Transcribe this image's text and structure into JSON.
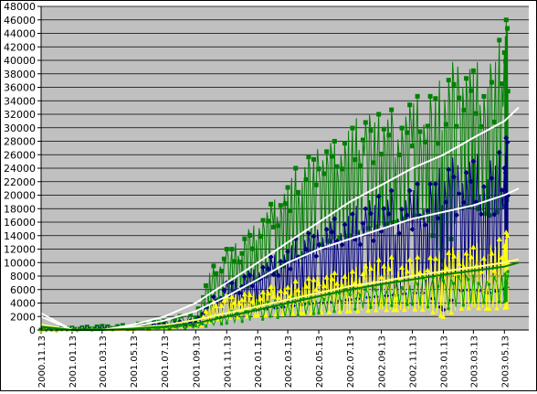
{
  "chart_data": {
    "type": "line",
    "title": "",
    "xlabel": "",
    "ylabel": "",
    "ylim": [
      0,
      48000
    ],
    "y_ticks": [
      0,
      2000,
      4000,
      6000,
      8000,
      10000,
      12000,
      14000,
      16000,
      18000,
      20000,
      22000,
      24000,
      26000,
      28000,
      30000,
      32000,
      34000,
      36000,
      38000,
      40000,
      42000,
      44000,
      46000,
      48000
    ],
    "x_tick_labels": [
      "2000.11.13",
      "2001.01.13",
      "2001.03.13",
      "2001.05.13",
      "2001.07.13",
      "2001.09.13",
      "2001.11.13",
      "2002.01.13",
      "2002.03.13",
      "2002.05.13",
      "2002.07.13",
      "2002.09.13",
      "2002.11.13",
      "2003.01.13",
      "2003.03.13",
      "2003.05.13"
    ],
    "grid": true,
    "legend": "none",
    "plot_background": "#c0c0c0",
    "series": [
      {
        "color": "#008000",
        "marker": "square",
        "x": [
          "2000.11.13",
          "2001.01.13",
          "2001.03.13",
          "2001.05.13",
          "2001.07.13",
          "2001.09.13",
          "2001.10.13",
          "2001.11.13",
          "2001.12.13",
          "2002.01.13",
          "2002.02.13",
          "2002.03.13",
          "2002.04.13",
          "2002.05.13",
          "2002.06.13",
          "2002.07.13",
          "2002.08.13",
          "2002.09.13",
          "2002.10.13",
          "2002.11.13",
          "2002.12.13",
          "2003.01.13",
          "2003.02.13",
          "2003.03.13",
          "2003.04.13",
          "2003.05.13",
          "2003.05.20"
        ],
        "peak": [
          200,
          400,
          600,
          900,
          1500,
          2600,
          9000,
          12000,
          13500,
          17000,
          19000,
          23000,
          25000,
          27000,
          28000,
          31000,
          32000,
          32000,
          33000,
          35000,
          34000,
          38000,
          41000,
          40000,
          39000,
          45000,
          47000
        ],
        "low": [
          0,
          100,
          200,
          300,
          500,
          800,
          4000,
          5000,
          6000,
          7500,
          8500,
          10000,
          11000,
          12500,
          13500,
          14000,
          15000,
          15500,
          16000,
          17000,
          16500,
          9000,
          18000,
          18500,
          17000,
          18000,
          20000
        ]
      },
      {
        "color": "#000080",
        "marker": "diamond",
        "x": [
          "2000.11.13",
          "2001.01.13",
          "2001.03.13",
          "2001.05.13",
          "2001.07.13",
          "2001.09.13",
          "2001.10.13",
          "2001.11.13",
          "2001.12.13",
          "2002.01.13",
          "2002.02.13",
          "2002.03.13",
          "2002.04.13",
          "2002.05.13",
          "2002.06.13",
          "2002.07.13",
          "2002.08.13",
          "2002.09.13",
          "2002.10.13",
          "2002.11.13",
          "2002.12.13",
          "2003.01.13",
          "2003.02.13",
          "2003.03.13",
          "2003.04.13",
          "2003.05.13",
          "2003.05.20"
        ],
        "peak": [
          100,
          200,
          300,
          500,
          900,
          1500,
          4500,
          7000,
          8000,
          10000,
          11000,
          13000,
          14000,
          15000,
          16500,
          18000,
          19000,
          20000,
          21000,
          22000,
          21000,
          25000,
          26000,
          26500,
          25000,
          27000,
          30000
        ],
        "low": [
          0,
          50,
          100,
          200,
          300,
          500,
          1500,
          2000,
          2500,
          3000,
          3200,
          3500,
          3800,
          4000,
          4200,
          4500,
          4800,
          5000,
          5200,
          5500,
          5500,
          3000,
          5800,
          6000,
          5500,
          6000,
          6500
        ]
      },
      {
        "color": "#ffff00",
        "marker": "triangle",
        "x": [
          "2000.11.13",
          "2001.01.13",
          "2001.03.13",
          "2001.05.13",
          "2001.07.13",
          "2001.09.13",
          "2001.10.13",
          "2001.11.13",
          "2001.12.13",
          "2002.01.13",
          "2002.02.13",
          "2002.03.13",
          "2002.04.13",
          "2002.05.13",
          "2002.06.13",
          "2002.07.13",
          "2002.08.13",
          "2002.09.13",
          "2002.10.13",
          "2002.11.13",
          "2002.12.13",
          "2003.01.13",
          "2003.02.13",
          "2003.03.13",
          "2003.04.13",
          "2003.05.13",
          "2003.05.20"
        ],
        "peak": [
          100,
          150,
          200,
          300,
          500,
          800,
          4000,
          5000,
          5500,
          6000,
          6500,
          7000,
          7500,
          8000,
          8500,
          9000,
          10000,
          10500,
          11000,
          11000,
          10500,
          12000,
          12500,
          13000,
          12500,
          14000,
          15000
        ],
        "low": [
          0,
          50,
          100,
          150,
          200,
          300,
          1500,
          1800,
          2000,
          2200,
          2300,
          2400,
          2500,
          2600,
          2700,
          2800,
          2900,
          3000,
          3000,
          3100,
          3000,
          2000,
          3200,
          3300,
          3200,
          3300,
          3500
        ]
      },
      {
        "color": "#00a000",
        "marker": "cross",
        "x": [
          "2000.11.13",
          "2001.01.13",
          "2001.03.13",
          "2001.05.13",
          "2001.07.13",
          "2001.09.13",
          "2001.11.13",
          "2002.01.13",
          "2002.03.13",
          "2002.05.13",
          "2002.07.13",
          "2002.09.13",
          "2002.11.13",
          "2003.01.13",
          "2003.03.13",
          "2003.05.13",
          "2003.05.20"
        ],
        "peak": [
          0,
          100,
          200,
          300,
          400,
          800,
          2500,
          4000,
          5000,
          5500,
          6500,
          7000,
          7500,
          8500,
          8000,
          8500,
          9000
        ],
        "low": [
          0,
          0,
          50,
          100,
          150,
          300,
          1000,
          1500,
          2000,
          2500,
          3000,
          3500,
          3800,
          3000,
          4000,
          4200,
          4500
        ]
      }
    ],
    "trendlines": [
      {
        "color": "#ffffff",
        "x": [
          "2000.11.13",
          "2001.01.13",
          "2001.03.13",
          "2001.05.13",
          "2001.07.13",
          "2001.09.13",
          "2001.11.13",
          "2002.01.13",
          "2002.03.13",
          "2002.05.13",
          "2002.07.13",
          "2002.09.13",
          "2002.11.13",
          "2003.01.13",
          "2003.03.13",
          "2003.05.13",
          "2003.06.10"
        ],
        "y": [
          2500,
          0,
          0,
          800,
          2000,
          4000,
          7000,
          10000,
          13000,
          16000,
          19000,
          21500,
          24000,
          26000,
          28500,
          31000,
          33000
        ]
      },
      {
        "color": "#ffffff",
        "x": [
          "2000.11.13",
          "2001.01.13",
          "2001.03.13",
          "2001.05.13",
          "2001.07.13",
          "2001.09.13",
          "2001.11.13",
          "2002.01.13",
          "2002.03.13",
          "2002.05.13",
          "2002.07.13",
          "2002.09.13",
          "2002.11.13",
          "2003.01.13",
          "2003.03.13",
          "2003.05.13",
          "2003.06.10"
        ],
        "y": [
          2000,
          0,
          0,
          500,
          1400,
          2800,
          5000,
          7500,
          10000,
          12000,
          13500,
          15000,
          16500,
          17500,
          18500,
          20000,
          21000
        ]
      },
      {
        "color": "#ffff80",
        "x": [
          "2000.11.13",
          "2001.01.13",
          "2001.03.13",
          "2001.05.13",
          "2001.07.13",
          "2001.09.13",
          "2001.11.13",
          "2002.01.13",
          "2002.03.13",
          "2002.05.13",
          "2002.07.13",
          "2002.09.13",
          "2002.11.13",
          "2003.01.13",
          "2003.03.13",
          "2003.05.13",
          "2003.06.10"
        ],
        "y": [
          800,
          0,
          0,
          300,
          700,
          1500,
          2500,
          3500,
          4500,
          5500,
          6500,
          7200,
          8000,
          8700,
          9300,
          10000,
          10500
        ]
      },
      {
        "color": "#008000",
        "x": [
          "2000.11.13",
          "2001.01.13",
          "2001.03.13",
          "2001.05.13",
          "2001.07.13",
          "2001.09.13",
          "2001.11.13",
          "2002.01.13",
          "2002.03.13",
          "2002.05.13",
          "2002.07.13",
          "2002.09.13",
          "2002.11.13",
          "2003.01.13",
          "2003.03.13",
          "2003.05.13",
          "2003.06.10"
        ],
        "y": [
          500,
          0,
          0,
          200,
          500,
          1000,
          2000,
          3000,
          4000,
          5000,
          6000,
          6800,
          7500,
          8200,
          8800,
          9400,
          10000
        ]
      }
    ]
  }
}
